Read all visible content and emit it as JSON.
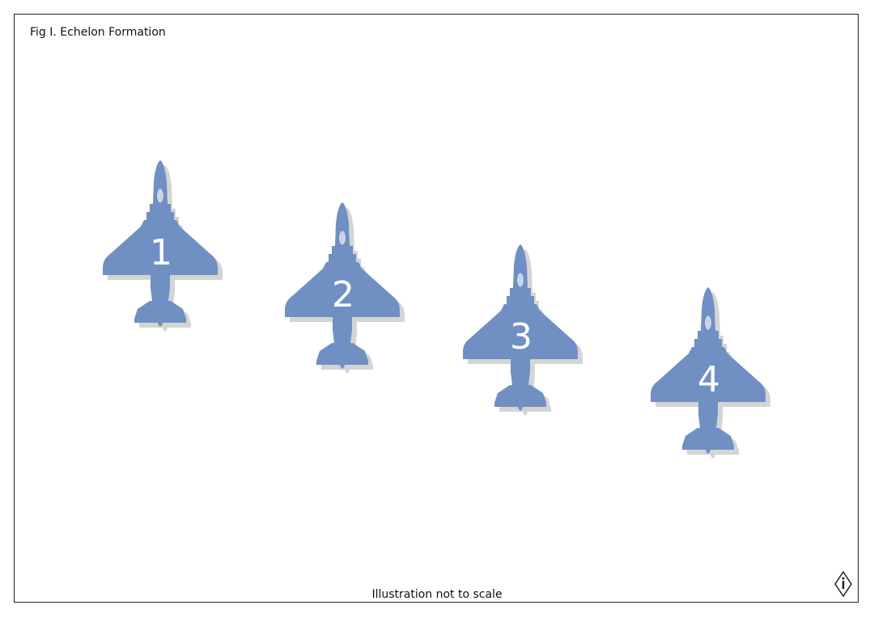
{
  "figure": {
    "title": "Fig I. Echelon Formation",
    "note": "Illustration not to scale"
  },
  "aircraft": [
    {
      "label": "1"
    },
    {
      "label": "2"
    },
    {
      "label": "3"
    },
    {
      "label": "4"
    }
  ],
  "colors": {
    "aircraft": "#7090c4",
    "shadow": "#d4d4d4",
    "canopy": "#c9d4e6",
    "label": "#ffffff",
    "frame": "#222222"
  },
  "icons": {
    "compass": "north-indicator-icon"
  }
}
